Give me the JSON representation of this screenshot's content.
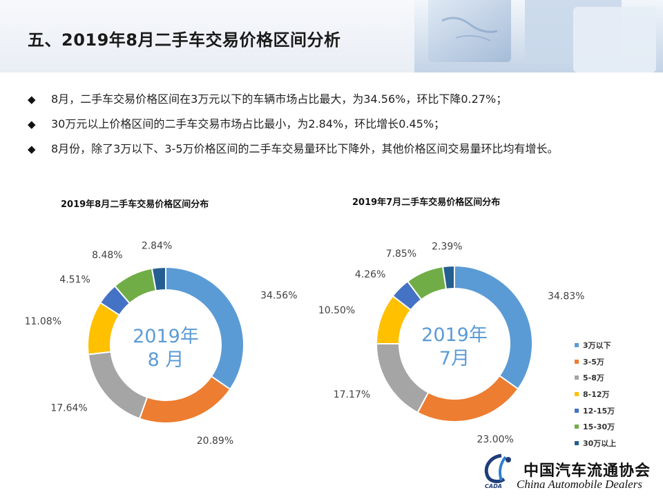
{
  "page": {
    "title": "五、2019年8月二手车交易价格区间分析",
    "bullet_mark": "◆",
    "bullets": [
      "8月，二手车交易价格区间在3万元以下的车辆市场占比最大，为34.56%，环比下降0.27%；",
      "30万元以上价格区间的二手车交易市场占比最小，为2.84%，环比增长0.45%；",
      "8月份，除了3万以下、3-5万价格区间的二手车交易量环比下降外，其他价格区间交易量环比均有增长。"
    ]
  },
  "chart_data": [
    {
      "type": "pie",
      "title": "2019年8月二手车交易价格区间分布",
      "center_label_line1": "2019年",
      "center_label_line2": "8 月",
      "categories": [
        "3万以下",
        "3-5万",
        "5-8万",
        "8-12万",
        "12-15万",
        "15-30万",
        "30万以上"
      ],
      "values": [
        34.56,
        20.89,
        17.64,
        11.08,
        4.51,
        8.48,
        2.84
      ],
      "labels": [
        "34.56%",
        "20.89%",
        "17.64%",
        "11.08%",
        "4.51%",
        "8.48%",
        "2.84%"
      ]
    },
    {
      "type": "pie",
      "title": "2019年7月二手车交易价格区间分布",
      "center_label_line1": "2019年",
      "center_label_line2": "7月",
      "categories": [
        "3万以下",
        "3-5万",
        "5-8万",
        "8-12万",
        "12-15万",
        "15-30万",
        "30万以上"
      ],
      "values": [
        34.83,
        23.0,
        17.17,
        10.5,
        4.26,
        7.85,
        2.39
      ],
      "labels": [
        "34.83%",
        "23.00%",
        "17.17%",
        "10.50%",
        "4.26%",
        "7.85%",
        "2.39%"
      ]
    }
  ],
  "legend": {
    "items": [
      "3万以下",
      "3-5万",
      "5-8万",
      "8-12万",
      "12-15万",
      "15-30万",
      "30万以上"
    ],
    "colors": [
      "#5b9bd5",
      "#ed7d31",
      "#a5a5a5",
      "#ffc000",
      "#4472c4",
      "#70ad47",
      "#255e91"
    ]
  },
  "logo": {
    "name_cn": "中国汽车流通协会",
    "name_en": "China Automobile Dealers",
    "abbr": "CADA"
  }
}
